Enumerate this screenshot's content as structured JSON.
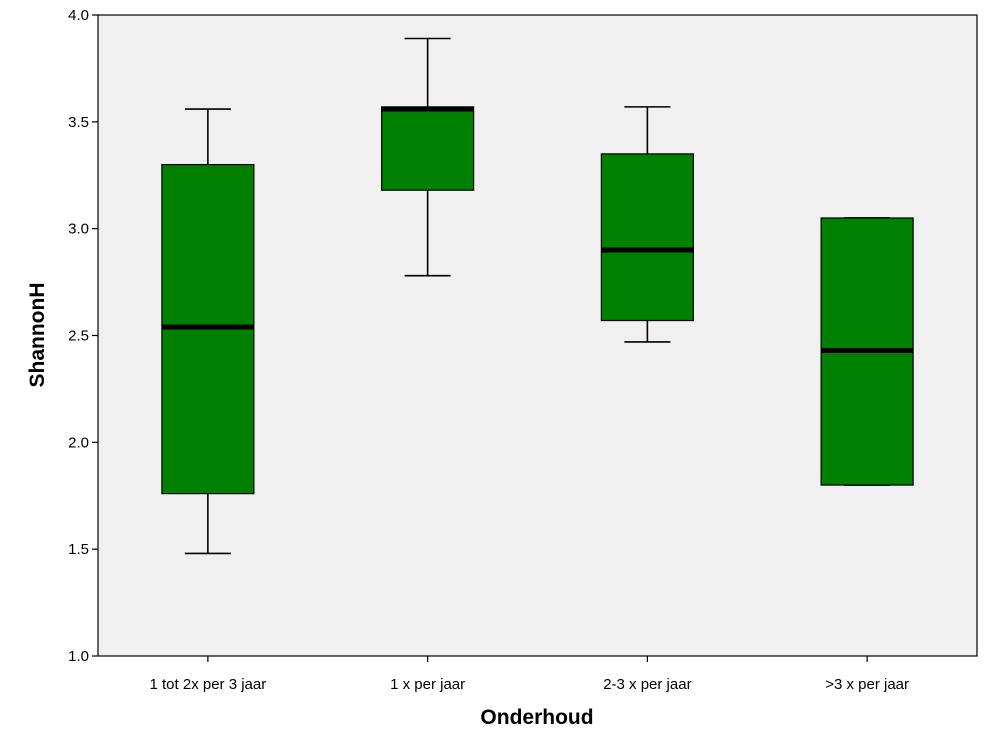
{
  "chart_data": {
    "type": "boxplot",
    "xlabel": "Onderhoud",
    "ylabel": "ShannonH",
    "ylim": [
      1.0,
      4.0
    ],
    "yticks": [
      1.0,
      1.5,
      2.0,
      2.5,
      3.0,
      3.5,
      4.0
    ],
    "ytick_labels": [
      "1.0",
      "1.5",
      "2.0",
      "2.5",
      "3.0",
      "3.5",
      "4.0"
    ],
    "grid": false,
    "categories": [
      "1 tot 2x per 3 jaar",
      "1 x per jaar",
      "2-3 x per jaar",
      ">3 x per jaar"
    ],
    "boxes": [
      {
        "min": 1.48,
        "q1": 1.76,
        "median": 2.54,
        "q3": 3.3,
        "max": 3.56
      },
      {
        "min": 2.78,
        "q1": 3.18,
        "median": 3.56,
        "q3": 3.57,
        "max": 3.89
      },
      {
        "min": 2.47,
        "q1": 2.57,
        "median": 2.9,
        "q3": 3.35,
        "max": 3.57
      },
      {
        "min": 1.8,
        "q1": 1.8,
        "median": 2.43,
        "q3": 3.05,
        "max": 3.05
      }
    ],
    "colors": {
      "box_fill": "#008000",
      "plot_background": "#f0f0f0",
      "median": "#000000",
      "whisker": "#000000"
    }
  }
}
